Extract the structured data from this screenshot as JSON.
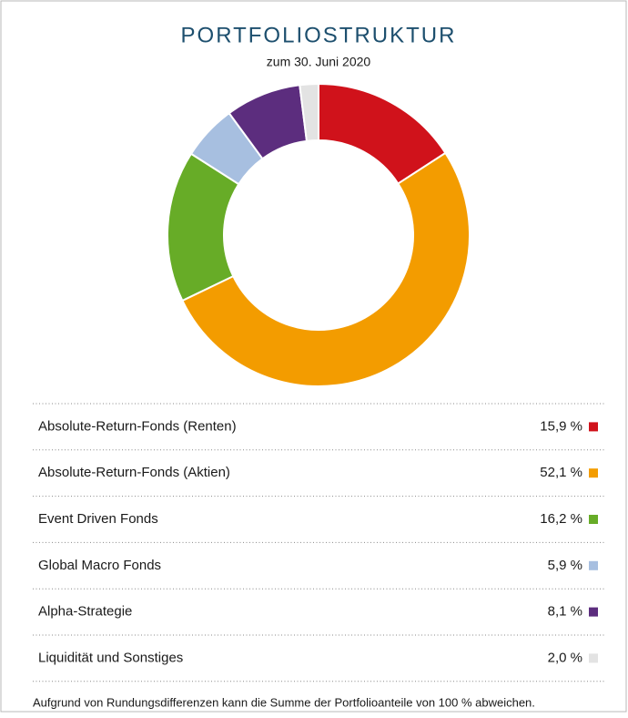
{
  "chart_data": {
    "type": "donut",
    "title": "PORTFOLIOSTRUKTUR",
    "subtitle": "zum 30. Juni 2020",
    "categories": [
      "Absolute-Return-Fonds (Renten)",
      "Absolute-Return-Fonds (Aktien)",
      "Event Driven Fonds",
      "Global Macro Fonds",
      "Alpha-Strategie",
      "Liquidität und Sonstiges"
    ],
    "values": [
      15.9,
      52.1,
      16.2,
      5.9,
      8.1,
      2.0
    ],
    "value_labels": [
      "15,9 %",
      "52,1 %",
      "16,2 %",
      "5,9 %",
      "8,1 %",
      "2,0 %"
    ],
    "colors": [
      "#d0121b",
      "#f39c00",
      "#67ac27",
      "#a7bfe0",
      "#5c2d7e",
      "#e3e3e3"
    ],
    "footnote": "Aufgrund von Rundungsdifferenzen kann die Summe der Portfolioanteile von 100 % abweichen."
  }
}
